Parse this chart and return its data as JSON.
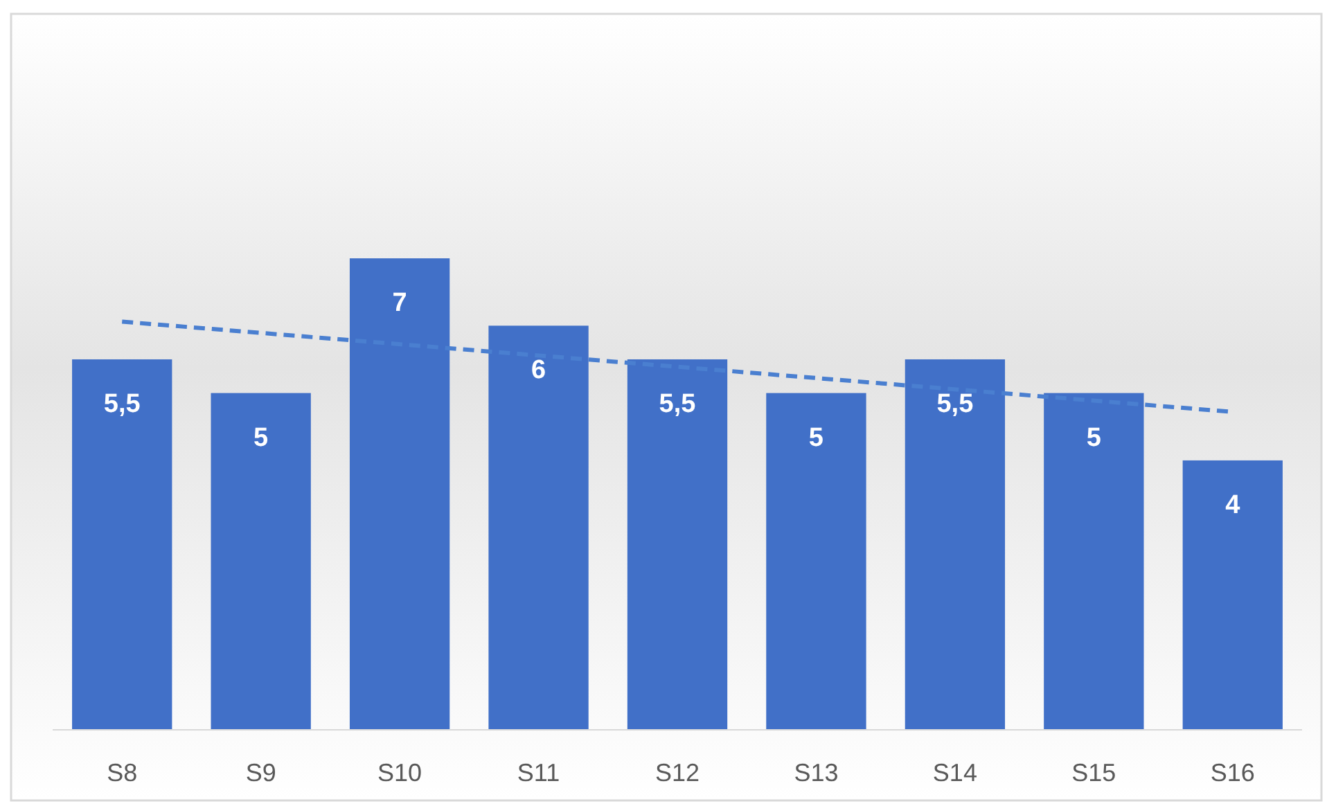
{
  "chart_data": {
    "type": "bar",
    "categories": [
      "S8",
      "S9",
      "S10",
      "S11",
      "S12",
      "S13",
      "S14",
      "S15",
      "S16"
    ],
    "series": [
      {
        "color": "#4170c8",
        "values": [
          5.5,
          5,
          7,
          6,
          5.5,
          5,
          5.5,
          5,
          4
        ],
        "value_labels": [
          "5,5",
          "5",
          "7",
          "6",
          "5,5",
          "5",
          "5,5",
          "5",
          "4"
        ]
      },
      {
        "type": "line",
        "color": "#4a7fd0",
        "line_style": "dashed",
        "x": [
          "S8",
          "S16"
        ],
        "values": [
          6.06,
          4.72
        ]
      }
    ]
  }
}
